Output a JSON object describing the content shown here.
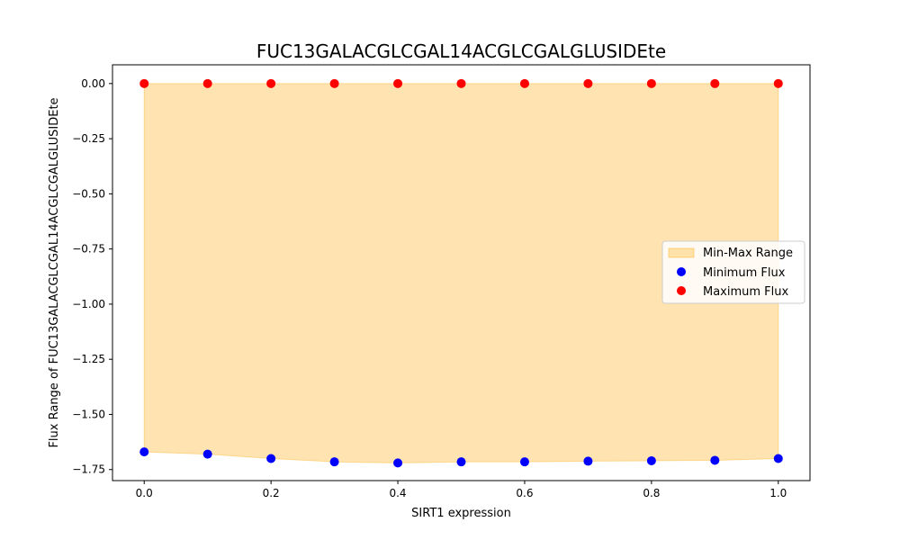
{
  "chart_data": {
    "type": "scatter",
    "title": "FUC13GALACGLCGAL14ACGLCGALGLUSIDEte",
    "xlabel": "SIRT1 expression",
    "ylabel": "Flux Range of FUC13GALACGLCGAL14ACGLCGALGLUSIDEte",
    "xlim": [
      -0.05,
      1.05
    ],
    "ylim": [
      -1.8,
      0.085
    ],
    "x_ticks": [
      0.0,
      0.2,
      0.4,
      0.6,
      0.8,
      1.0
    ],
    "x_tick_labels": [
      "0.0",
      "0.2",
      "0.4",
      "0.6",
      "0.8",
      "1.0"
    ],
    "y_ticks": [
      0.0,
      -0.25,
      -0.5,
      -0.75,
      -1.0,
      -1.25,
      -1.5,
      -1.75
    ],
    "y_tick_labels": [
      "0.00",
      "−0.25",
      "−0.50",
      "−0.75",
      "−1.00",
      "−1.25",
      "−1.50",
      "−1.75"
    ],
    "x": [
      0.0,
      0.1,
      0.2,
      0.3,
      0.4,
      0.5,
      0.6,
      0.7,
      0.8,
      0.9,
      1.0
    ],
    "series": [
      {
        "name": "Minimum Flux",
        "values": [
          -1.67,
          -1.68,
          -1.7,
          -1.715,
          -1.72,
          -1.715,
          -1.715,
          -1.712,
          -1.71,
          -1.708,
          -1.7
        ],
        "color": "#0000ff"
      },
      {
        "name": "Maximum Flux",
        "values": [
          0,
          0,
          0,
          0,
          0,
          0,
          0,
          0,
          0,
          0,
          0
        ],
        "color": "#ff0000"
      }
    ],
    "fill": {
      "name": "Min-Max Range",
      "color": "#ffa500",
      "opacity": 0.3
    },
    "grid": false,
    "legend_position": "center-right"
  }
}
